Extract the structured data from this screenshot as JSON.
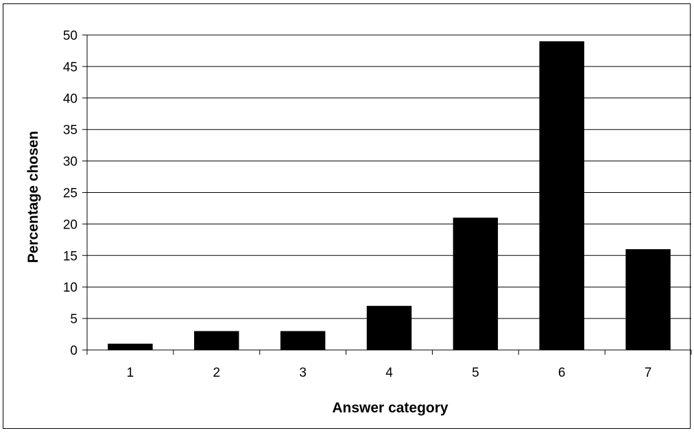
{
  "chart_data": {
    "type": "bar",
    "categories": [
      "1",
      "2",
      "3",
      "4",
      "5",
      "6",
      "7"
    ],
    "values": [
      1,
      3,
      3,
      7,
      21,
      49,
      16
    ],
    "xlabel": "Answer category",
    "ylabel": "Percentage chosen",
    "ylim": [
      0,
      50
    ],
    "yticks": [
      "0",
      "5",
      "10",
      "15",
      "20",
      "25",
      "30",
      "35",
      "40",
      "45",
      "50"
    ],
    "grid": true,
    "legend": "none",
    "bar_color": "#000000",
    "grid_color": "#000000"
  }
}
